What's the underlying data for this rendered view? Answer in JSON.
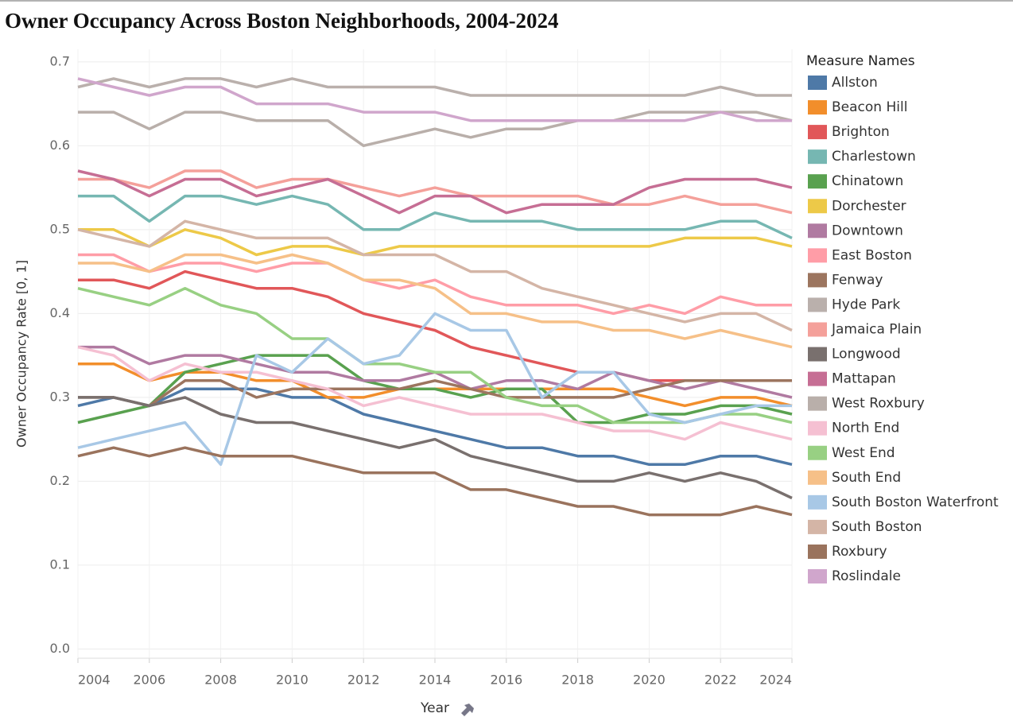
{
  "chart_data": {
    "type": "line",
    "title": "Owner Occupancy Across Boston Neighborhoods, 2004-2024",
    "x_label": "Year",
    "y_label": "Owner Occupancy Rate [0, 1]",
    "legend_title": "Measure Names",
    "legend": "right",
    "grid": true,
    "x": [
      2004,
      2005,
      2006,
      2007,
      2008,
      2009,
      2010,
      2011,
      2012,
      2013,
      2014,
      2015,
      2016,
      2017,
      2018,
      2019,
      2020,
      2021,
      2022,
      2023,
      2024
    ],
    "xlim": [
      2004,
      2024
    ],
    "xticks": [
      2004,
      2006,
      2008,
      2010,
      2012,
      2014,
      2016,
      2018,
      2020,
      2022,
      2024
    ],
    "ylim": [
      -0.011,
      0.715
    ],
    "yticks": [
      {
        "value": 0,
        "label": "0.0"
      },
      0.1,
      0.2,
      0.3,
      0.4,
      0.5,
      0.6,
      0.7
    ],
    "series": [
      {
        "name": "Allston",
        "color": "#4e79a7",
        "values": [
          0.29,
          0.3,
          0.29,
          0.31,
          0.31,
          0.31,
          0.3,
          0.3,
          0.28,
          0.27,
          0.26,
          0.25,
          0.24,
          0.24,
          0.23,
          0.23,
          0.22,
          0.22,
          0.23,
          0.23,
          0.22
        ]
      },
      {
        "name": "Beacon Hill",
        "color": "#f28e2b",
        "values": [
          0.34,
          0.34,
          0.32,
          0.33,
          0.33,
          0.32,
          0.32,
          0.3,
          0.3,
          0.31,
          0.31,
          0.31,
          0.31,
          0.31,
          0.31,
          0.31,
          0.3,
          0.29,
          0.3,
          0.3,
          0.29
        ]
      },
      {
        "name": "Brighton",
        "color": "#e15759",
        "values": [
          0.44,
          0.44,
          0.43,
          0.45,
          0.44,
          0.43,
          0.43,
          0.42,
          0.4,
          0.39,
          0.38,
          0.36,
          0.35,
          0.34,
          0.33,
          0.33,
          0.32,
          0.32,
          0.32,
          0.32,
          0.32
        ]
      },
      {
        "name": "Charlestown",
        "color": "#76b7b2",
        "values": [
          0.54,
          0.54,
          0.51,
          0.54,
          0.54,
          0.53,
          0.54,
          0.53,
          0.5,
          0.5,
          0.52,
          0.51,
          0.51,
          0.51,
          0.5,
          0.5,
          0.5,
          0.5,
          0.51,
          0.51,
          0.49
        ]
      },
      {
        "name": "Chinatown",
        "color": "#59a14f",
        "values": [
          0.27,
          0.28,
          0.29,
          0.33,
          0.34,
          0.35,
          0.35,
          0.35,
          0.32,
          0.31,
          0.31,
          0.3,
          0.31,
          0.31,
          0.27,
          0.27,
          0.28,
          0.28,
          0.29,
          0.29,
          0.28
        ]
      },
      {
        "name": "Dorchester",
        "color": "#edc948",
        "values": [
          0.5,
          0.5,
          0.48,
          0.5,
          0.49,
          0.47,
          0.48,
          0.48,
          0.47,
          0.48,
          0.48,
          0.48,
          0.48,
          0.48,
          0.48,
          0.48,
          0.48,
          0.49,
          0.49,
          0.49,
          0.48
        ]
      },
      {
        "name": "Downtown",
        "color": "#b07aa1",
        "values": [
          0.36,
          0.36,
          0.34,
          0.35,
          0.35,
          0.34,
          0.33,
          0.33,
          0.32,
          0.32,
          0.33,
          0.31,
          0.32,
          0.32,
          0.31,
          0.33,
          0.32,
          0.31,
          0.32,
          0.31,
          0.3
        ]
      },
      {
        "name": "East Boston",
        "color": "#ff9da7",
        "values": [
          0.47,
          0.47,
          0.45,
          0.46,
          0.46,
          0.45,
          0.46,
          0.46,
          0.44,
          0.43,
          0.44,
          0.42,
          0.41,
          0.41,
          0.41,
          0.4,
          0.41,
          0.4,
          0.42,
          0.41,
          0.41
        ]
      },
      {
        "name": "Fenway",
        "color": "#9c755f",
        "values": [
          0.3,
          0.3,
          0.29,
          0.32,
          0.32,
          0.3,
          0.31,
          0.31,
          0.31,
          0.31,
          0.32,
          0.31,
          0.3,
          0.3,
          0.3,
          0.3,
          0.31,
          0.32,
          0.32,
          0.32,
          0.32
        ]
      },
      {
        "name": "Hyde Park",
        "color": "#bab0ac",
        "values": [
          0.67,
          0.68,
          0.67,
          0.68,
          0.68,
          0.67,
          0.68,
          0.67,
          0.67,
          0.67,
          0.67,
          0.66,
          0.66,
          0.66,
          0.66,
          0.66,
          0.66,
          0.66,
          0.67,
          0.66,
          0.66
        ]
      },
      {
        "name": "Jamaica Plain",
        "color": "#f4a09a",
        "values": [
          0.56,
          0.56,
          0.55,
          0.57,
          0.57,
          0.55,
          0.56,
          0.56,
          0.55,
          0.54,
          0.55,
          0.54,
          0.54,
          0.54,
          0.54,
          0.53,
          0.53,
          0.54,
          0.53,
          0.53,
          0.52
        ]
      },
      {
        "name": "Longwood",
        "color": "#79706e",
        "values": [
          0.3,
          0.3,
          0.29,
          0.3,
          0.28,
          0.27,
          0.27,
          0.26,
          0.25,
          0.24,
          0.25,
          0.23,
          0.22,
          0.21,
          0.2,
          0.2,
          0.21,
          0.2,
          0.21,
          0.2,
          0.18
        ]
      },
      {
        "name": "Mattapan",
        "color": "#c66e94",
        "values": [
          0.57,
          0.56,
          0.54,
          0.56,
          0.56,
          0.54,
          0.55,
          0.56,
          0.54,
          0.52,
          0.54,
          0.54,
          0.52,
          0.53,
          0.53,
          0.53,
          0.55,
          0.56,
          0.56,
          0.56,
          0.55
        ]
      },
      {
        "name": "West Roxbury",
        "color": "#b9afaa",
        "values": [
          0.64,
          0.64,
          0.62,
          0.64,
          0.64,
          0.63,
          0.63,
          0.63,
          0.6,
          0.61,
          0.62,
          0.61,
          0.62,
          0.62,
          0.63,
          0.63,
          0.64,
          0.64,
          0.64,
          0.64,
          0.63
        ]
      },
      {
        "name": "North End",
        "color": "#f5c0d2",
        "values": [
          0.36,
          0.35,
          0.32,
          0.34,
          0.33,
          0.33,
          0.32,
          0.31,
          0.29,
          0.3,
          0.29,
          0.28,
          0.28,
          0.28,
          0.27,
          0.26,
          0.26,
          0.25,
          0.27,
          0.26,
          0.25
        ]
      },
      {
        "name": "West End",
        "color": "#98d083",
        "values": [
          0.43,
          0.42,
          0.41,
          0.43,
          0.41,
          0.4,
          0.37,
          0.37,
          0.34,
          0.34,
          0.33,
          0.33,
          0.3,
          0.29,
          0.29,
          0.27,
          0.27,
          0.27,
          0.28,
          0.28,
          0.27
        ]
      },
      {
        "name": "South End",
        "color": "#f6c088",
        "values": [
          0.46,
          0.46,
          0.45,
          0.47,
          0.47,
          0.46,
          0.47,
          0.46,
          0.44,
          0.44,
          0.43,
          0.4,
          0.4,
          0.39,
          0.39,
          0.38,
          0.38,
          0.37,
          0.38,
          0.37,
          0.36
        ]
      },
      {
        "name": "South Boston Waterfront",
        "color": "#a8c8e6",
        "values": [
          0.24,
          0.25,
          0.26,
          0.27,
          0.22,
          0.35,
          0.33,
          0.37,
          0.34,
          0.35,
          0.4,
          0.38,
          0.38,
          0.3,
          0.33,
          0.33,
          0.28,
          0.27,
          0.28,
          0.29,
          0.29
        ]
      },
      {
        "name": "South Boston",
        "color": "#d4b5a6",
        "values": [
          0.5,
          0.49,
          0.48,
          0.51,
          0.5,
          0.49,
          0.49,
          0.49,
          0.47,
          0.47,
          0.47,
          0.45,
          0.45,
          0.43,
          0.42,
          0.41,
          0.4,
          0.39,
          0.4,
          0.4,
          0.38
        ]
      },
      {
        "name": "Roxbury",
        "color": "#9a735d",
        "values": [
          0.23,
          0.24,
          0.23,
          0.24,
          0.23,
          0.23,
          0.23,
          0.22,
          0.21,
          0.21,
          0.21,
          0.19,
          0.19,
          0.18,
          0.17,
          0.17,
          0.16,
          0.16,
          0.16,
          0.17,
          0.16
        ]
      },
      {
        "name": "Roslindale",
        "color": "#d0a6cc",
        "values": [
          0.68,
          0.67,
          0.66,
          0.67,
          0.67,
          0.65,
          0.65,
          0.65,
          0.64,
          0.64,
          0.64,
          0.63,
          0.63,
          0.63,
          0.63,
          0.63,
          0.63,
          0.63,
          0.64,
          0.63,
          0.63
        ]
      }
    ]
  }
}
